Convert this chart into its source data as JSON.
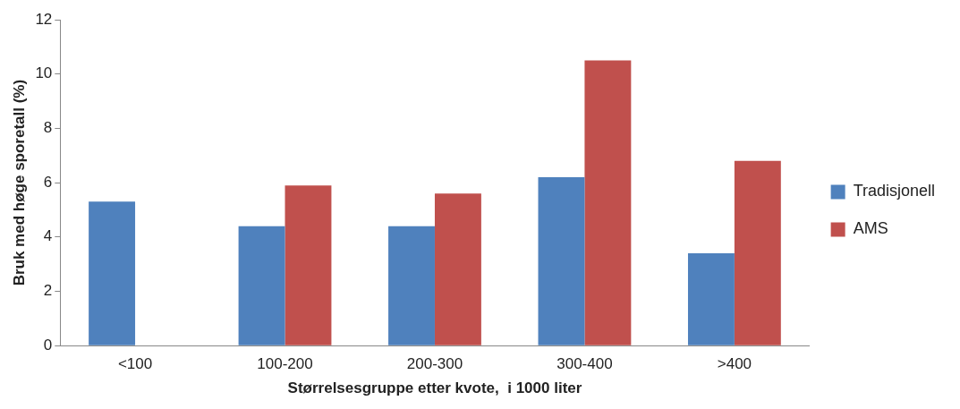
{
  "chart_data": {
    "type": "bar",
    "xlabel": "Størrelsesgruppe etter kvote,  i 1000 liter",
    "ylabel": "Bruk med høge sporetall (%)",
    "categories": [
      "<100",
      "100-200",
      "200-300",
      "300-400",
      ">400"
    ],
    "series": [
      {
        "name": "Tradisjonell",
        "color": "#4f81bd",
        "values": [
          5.3,
          4.4,
          4.4,
          6.2,
          3.4
        ]
      },
      {
        "name": "AMS",
        "color": "#c0504d",
        "values": [
          null,
          5.9,
          5.6,
          10.5,
          6.8
        ]
      }
    ],
    "ylim": [
      0,
      12
    ],
    "yticks": [
      0,
      2,
      4,
      6,
      8,
      10,
      12
    ],
    "grid": false,
    "legend": "right"
  }
}
